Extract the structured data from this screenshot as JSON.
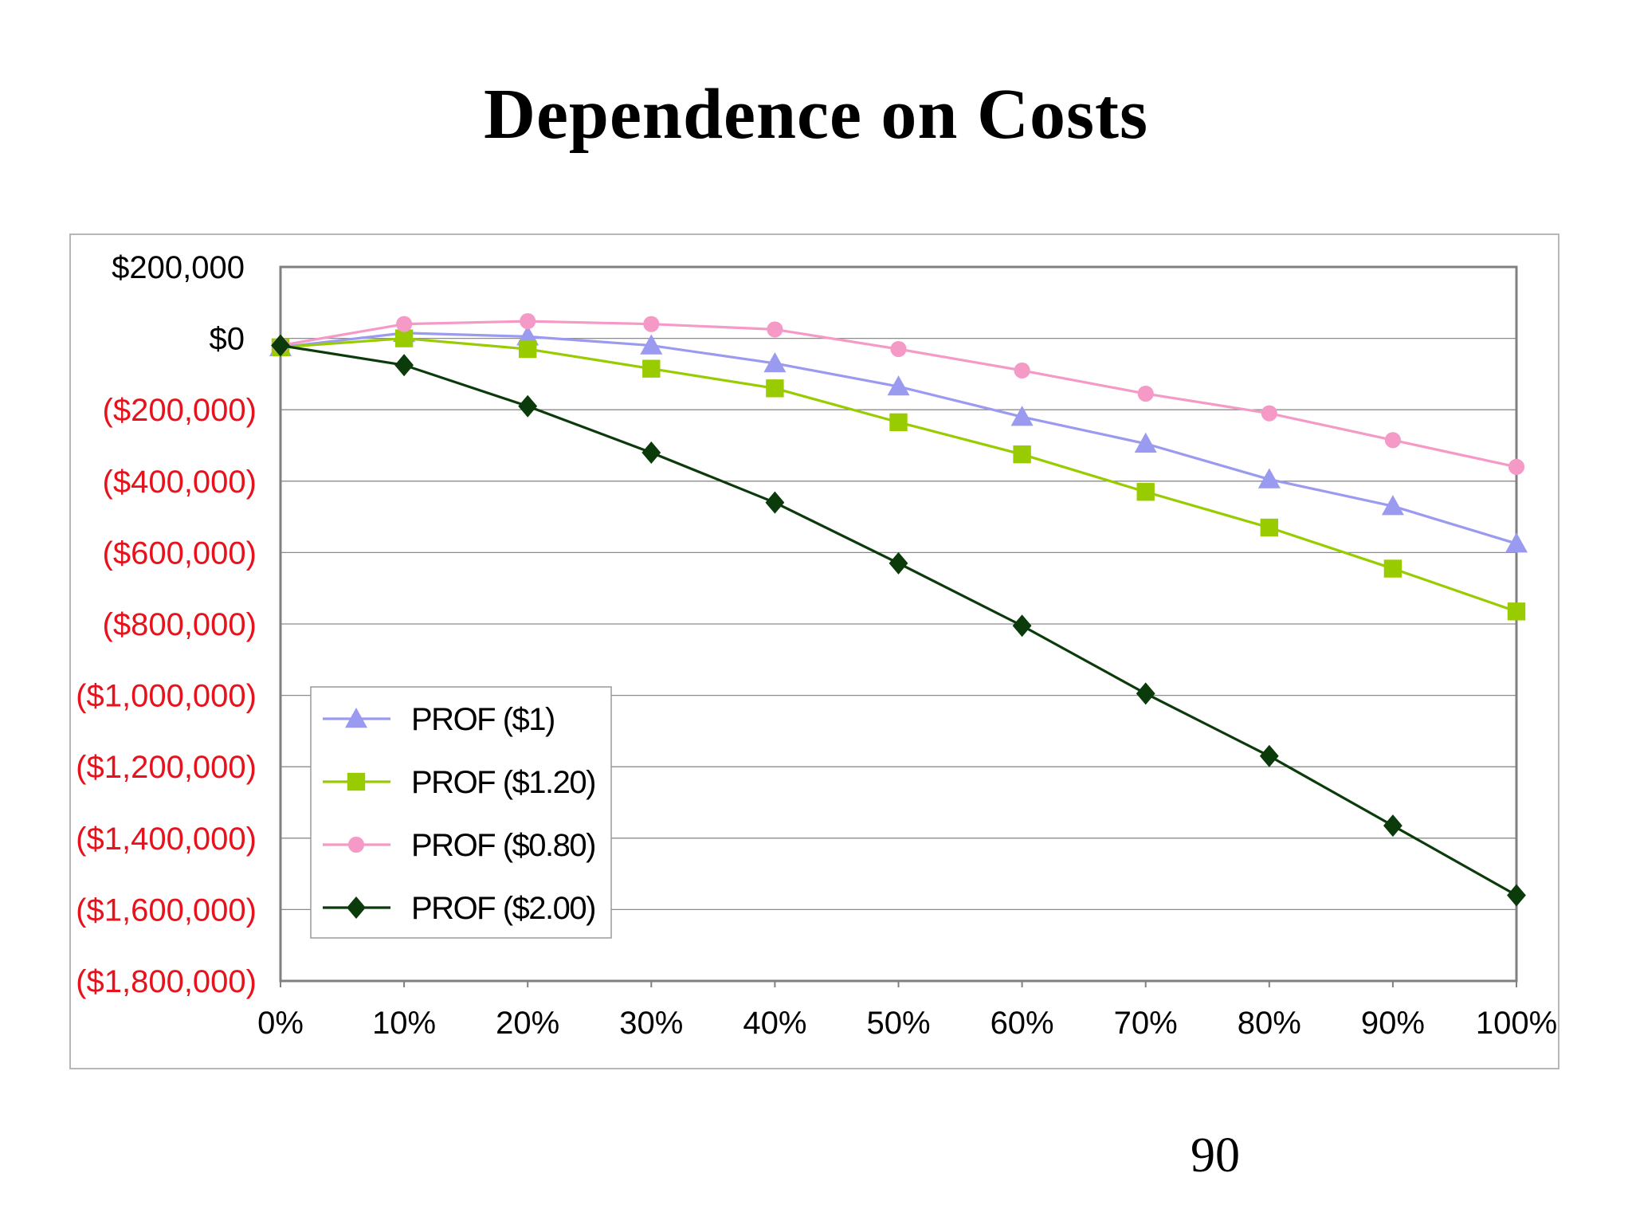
{
  "slide": {
    "title": "Dependence on Costs",
    "page_number": "90"
  },
  "chart_data": {
    "type": "line",
    "title": "",
    "xlabel": "",
    "ylabel": "",
    "categories": [
      "0%",
      "10%",
      "20%",
      "30%",
      "40%",
      "50%",
      "60%",
      "70%",
      "80%",
      "90%",
      "100%"
    ],
    "ylim": [
      -1800000,
      200000
    ],
    "y_ticks": [
      {
        "value": 200000,
        "label": "$200,000",
        "negative": false
      },
      {
        "value": 0,
        "label": "$0",
        "negative": false
      },
      {
        "value": -200000,
        "label": "($200,000)",
        "negative": true
      },
      {
        "value": -400000,
        "label": "($400,000)",
        "negative": true
      },
      {
        "value": -600000,
        "label": "($600,000)",
        "negative": true
      },
      {
        "value": -800000,
        "label": "($800,000)",
        "negative": true
      },
      {
        "value": -1000000,
        "label": "($1,000,000)",
        "negative": true
      },
      {
        "value": -1200000,
        "label": "($1,200,000)",
        "negative": true
      },
      {
        "value": -1400000,
        "label": "($1,400,000)",
        "negative": true
      },
      {
        "value": -1600000,
        "label": "($1,600,000)",
        "negative": true
      },
      {
        "value": -1800000,
        "label": "($1,800,000)",
        "negative": true
      }
    ],
    "grid": true,
    "legend_position": "lower-left",
    "colors": {
      "negative_tick": "#e8121c",
      "positive_tick": "#000000",
      "gridline": "#8c8c8c",
      "plot_border": "#808080"
    },
    "series": [
      {
        "name": "PROF ($1)",
        "marker": "triangle",
        "color": "#9a9af0",
        "values": [
          -25000,
          15000,
          5000,
          -20000,
          -70000,
          -135000,
          -220000,
          -295000,
          -395000,
          -470000,
          -575000
        ]
      },
      {
        "name": "PROF ($1.20)",
        "marker": "square",
        "color": "#99cc00",
        "values": [
          -25000,
          0,
          -30000,
          -85000,
          -140000,
          -235000,
          -325000,
          -430000,
          -530000,
          -645000,
          -765000
        ]
      },
      {
        "name": "PROF ($0.80)",
        "marker": "circle",
        "color": "#f59ac6",
        "values": [
          -20000,
          40000,
          48000,
          40000,
          25000,
          -30000,
          -90000,
          -155000,
          -210000,
          -285000,
          -360000
        ]
      },
      {
        "name": "PROF ($2.00)",
        "marker": "diamond",
        "color": "#0b3b0b",
        "values": [
          -20000,
          -75000,
          -190000,
          -320000,
          -460000,
          -630000,
          -805000,
          -995000,
          -1170000,
          -1365000,
          -1560000
        ]
      }
    ]
  }
}
